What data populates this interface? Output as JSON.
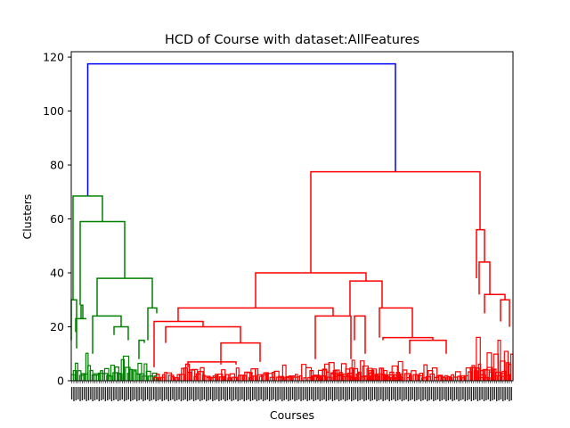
{
  "chart_data": {
    "type": "dendrogram",
    "title": "HCD of Course with dataset:AllFeatures",
    "xlabel": "Courses",
    "ylabel": "Clusters",
    "ylim": [
      0,
      122
    ],
    "yticks": [
      0,
      20,
      40,
      60,
      80,
      100,
      120
    ],
    "colors": {
      "top": "#0000ff",
      "left_cluster": "#008000",
      "right_cluster": "#ff0000"
    },
    "links": [
      {
        "cluster": "top",
        "x1": 0.0373,
        "x2": 0.7339,
        "h": 117.5,
        "h1": 68.5,
        "h2": 77.5
      },
      {
        "cluster": "left_cluster",
        "x1": 0.004,
        "x2": 0.0706,
        "h": 68.5,
        "h1": 30,
        "h2": 59
      },
      {
        "cluster": "left_cluster",
        "x1": 0.0202,
        "x2": 0.121,
        "h": 59,
        "h1": 28,
        "h2": 38
      },
      {
        "cluster": "left_cluster",
        "x1": 0.0585,
        "x2": 0.1835,
        "h": 38,
        "h1": 24,
        "h2": 27
      },
      {
        "cluster": "left_cluster",
        "x1": 0.0222,
        "x2": 0.0262,
        "h": 28,
        "h1": 23,
        "h2": 23
      },
      {
        "cluster": "left_cluster",
        "x1": 0.0101,
        "x2": 0.0343,
        "h": 23,
        "h1": 18,
        "h2": 23
      },
      {
        "cluster": "left_cluster",
        "x1": 0.0484,
        "x2": 0.1129,
        "h": 24,
        "h1": 10,
        "h2": 20
      },
      {
        "cluster": "left_cluster",
        "x1": 0.1734,
        "x2": 0.1935,
        "h": 27,
        "h1": 15,
        "h2": 25
      },
      {
        "cluster": "left_cluster",
        "x1": 0.0968,
        "x2": 0.129,
        "h": 20,
        "h1": 17,
        "h2": 15
      },
      {
        "cluster": "left_cluster",
        "x1": 0.1532,
        "x2": 0.1653,
        "h": 15,
        "h1": 8,
        "h2": 14
      },
      {
        "cluster": "left_cluster",
        "x1": 0.0,
        "x2": 0.0121,
        "h": 30,
        "h1": 15,
        "h2": 12
      },
      {
        "cluster": "right_cluster",
        "x1": 0.5423,
        "x2": 0.9254,
        "h": 77.5,
        "h1": 40,
        "h2": 56
      },
      {
        "cluster": "right_cluster",
        "x1": 0.4173,
        "x2": 0.6673,
        "h": 40,
        "h1": 27,
        "h2": 37
      },
      {
        "cluster": "right_cluster",
        "x1": 0.2419,
        "x2": 0.5927,
        "h": 27,
        "h1": 22,
        "h2": 24
      },
      {
        "cluster": "right_cluster",
        "x1": 0.1875,
        "x2": 0.2984,
        "h": 22,
        "h1": 5,
        "h2": 20
      },
      {
        "cluster": "right_cluster",
        "x1": 0.2137,
        "x2": 0.3831,
        "h": 20,
        "h1": 14,
        "h2": 14
      },
      {
        "cluster": "right_cluster",
        "x1": 0.3387,
        "x2": 0.4274,
        "h": 14,
        "h1": 6,
        "h2": 7
      },
      {
        "cluster": "right_cluster",
        "x1": 0.2641,
        "x2": 0.373,
        "h": 7,
        "h1": 5,
        "h2": 6
      },
      {
        "cluster": "right_cluster",
        "x1": 0.5524,
        "x2": 0.6331,
        "h": 24,
        "h1": 8,
        "h2": 8
      },
      {
        "cluster": "right_cluster",
        "x1": 0.631,
        "x2": 0.7036,
        "h": 37,
        "h1": 24,
        "h2": 27
      },
      {
        "cluster": "right_cluster",
        "x1": 0.6411,
        "x2": 0.6653,
        "h": 24,
        "h1": 15,
        "h2": 10
      },
      {
        "cluster": "right_cluster",
        "x1": 0.6976,
        "x2": 0.7722,
        "h": 27,
        "h1": 16,
        "h2": 16
      },
      {
        "cluster": "right_cluster",
        "x1": 0.7056,
        "x2": 0.8185,
        "h": 16,
        "h1": 15,
        "h2": 15
      },
      {
        "cluster": "right_cluster",
        "x1": 0.7661,
        "x2": 0.8488,
        "h": 15,
        "h1": 10,
        "h2": 10
      },
      {
        "cluster": "right_cluster",
        "x1": 0.9173,
        "x2": 0.9355,
        "h": 56,
        "h1": 38,
        "h2": 44
      },
      {
        "cluster": "right_cluster",
        "x1": 0.9234,
        "x2": 0.9476,
        "h": 44,
        "h1": 32,
        "h2": 32
      },
      {
        "cluster": "right_cluster",
        "x1": 0.9355,
        "x2": 0.9819,
        "h": 32,
        "h1": 25,
        "h2": 30
      },
      {
        "cluster": "right_cluster",
        "x1": 0.9718,
        "x2": 0.992,
        "h": 30,
        "h1": 22,
        "h2": 20
      }
    ],
    "leaf_bands": [
      {
        "cluster": "left_cluster",
        "from": 0.0,
        "to": 0.1935,
        "max_h": 11
      },
      {
        "cluster": "right_cluster",
        "from": 0.1875,
        "to": 0.994,
        "max_h": 7
      },
      {
        "cluster": "right_cluster",
        "from": 0.5403,
        "to": 0.75,
        "max_h": 10
      },
      {
        "cluster": "right_cluster",
        "from": 0.9073,
        "to": 1.0,
        "max_h": 18
      }
    ],
    "leaf_count": 420,
    "legend": "none"
  }
}
